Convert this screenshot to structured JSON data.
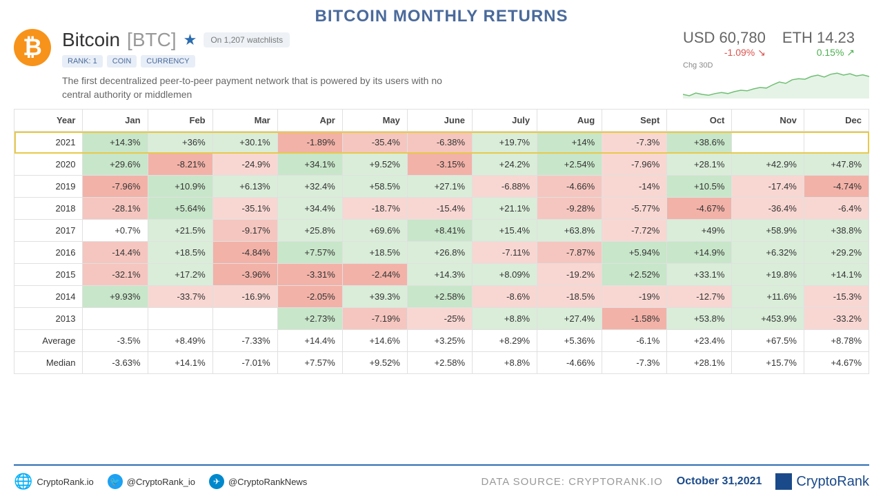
{
  "title": "BITCOIN MONTHLY RETURNS",
  "coin": {
    "name": "Bitcoin",
    "ticker": "[BTC]",
    "watchlists": "On 1,207 watchlists",
    "tags": [
      "RANK: 1",
      "COIN",
      "CURRENCY"
    ],
    "description": "The first decentralized peer-to-peer payment network that is powered by its users with no central authority or middlemen"
  },
  "prices": {
    "usd": {
      "label": "USD 60,780",
      "change": "-1.09% ↘",
      "dir": "down"
    },
    "eth": {
      "label": "ETH 14.23",
      "change": "0.15% ↗",
      "dir": "up"
    },
    "chg_label": "Chg 30D",
    "spark_color": "#6fbf73",
    "spark_fill": "#e5f3e6",
    "spark_points": [
      0.15,
      0.1,
      0.2,
      0.15,
      0.12,
      0.18,
      0.22,
      0.18,
      0.25,
      0.3,
      0.28,
      0.35,
      0.4,
      0.38,
      0.5,
      0.6,
      0.55,
      0.68,
      0.72,
      0.7,
      0.8,
      0.85,
      0.78,
      0.88,
      0.92,
      0.85,
      0.9,
      0.82,
      0.86,
      0.8
    ]
  },
  "columns": [
    "Year",
    "Jan",
    "Feb",
    "Mar",
    "Apr",
    "May",
    "June",
    "July",
    "Aug",
    "Sept",
    "Oct",
    "Nov",
    "Dec"
  ],
  "rows": [
    {
      "year": "2021",
      "highlight": true,
      "cells": [
        {
          "v": "+14.3%",
          "c": "#c8e6c9"
        },
        {
          "v": "+36%",
          "c": "#d9edd9"
        },
        {
          "v": "+30.1%",
          "c": "#d9edd9"
        },
        {
          "v": "-1.89%",
          "c": "#f2b2a8"
        },
        {
          "v": "-35.4%",
          "c": "#f5c6bf"
        },
        {
          "v": "-6.38%",
          "c": "#f5c6bf"
        },
        {
          "v": "+19.7%",
          "c": "#d9edd9"
        },
        {
          "v": "+14%",
          "c": "#c8e6c9"
        },
        {
          "v": "-7.3%",
          "c": "#f8d7d2"
        },
        {
          "v": "+38.6%",
          "c": "#c8e6c9"
        },
        {
          "v": "",
          "c": "#ffffff"
        },
        {
          "v": "",
          "c": "#ffffff"
        }
      ]
    },
    {
      "year": "2020",
      "cells": [
        {
          "v": "+29.6%",
          "c": "#c8e6c9"
        },
        {
          "v": "-8.21%",
          "c": "#f2b2a8"
        },
        {
          "v": "-24.9%",
          "c": "#f8d7d2"
        },
        {
          "v": "+34.1%",
          "c": "#c8e6c9"
        },
        {
          "v": "+9.52%",
          "c": "#d9edd9"
        },
        {
          "v": "-3.15%",
          "c": "#f2b2a8"
        },
        {
          "v": "+24.2%",
          "c": "#d9edd9"
        },
        {
          "v": "+2.54%",
          "c": "#c8e6c9"
        },
        {
          "v": "-7.96%",
          "c": "#f8d7d2"
        },
        {
          "v": "+28.1%",
          "c": "#d9edd9"
        },
        {
          "v": "+42.9%",
          "c": "#d9edd9"
        },
        {
          "v": "+47.8%",
          "c": "#d9edd9"
        }
      ]
    },
    {
      "year": "2019",
      "cells": [
        {
          "v": "-7.96%",
          "c": "#f2b2a8"
        },
        {
          "v": "+10.9%",
          "c": "#c8e6c9"
        },
        {
          "v": "+6.13%",
          "c": "#d9edd9"
        },
        {
          "v": "+32.4%",
          "c": "#d9edd9"
        },
        {
          "v": "+58.5%",
          "c": "#d9edd9"
        },
        {
          "v": "+27.1%",
          "c": "#d9edd9"
        },
        {
          "v": "-6.88%",
          "c": "#f8d7d2"
        },
        {
          "v": "-4.66%",
          "c": "#f5c6bf"
        },
        {
          "v": "-14%",
          "c": "#f8d7d2"
        },
        {
          "v": "+10.5%",
          "c": "#c8e6c9"
        },
        {
          "v": "-17.4%",
          "c": "#f8d7d2"
        },
        {
          "v": "-4.74%",
          "c": "#f2b2a8"
        }
      ]
    },
    {
      "year": "2018",
      "cells": [
        {
          "v": "-28.1%",
          "c": "#f5c6bf"
        },
        {
          "v": "+5.64%",
          "c": "#c8e6c9"
        },
        {
          "v": "-35.1%",
          "c": "#f8d7d2"
        },
        {
          "v": "+34.4%",
          "c": "#d9edd9"
        },
        {
          "v": "-18.7%",
          "c": "#f8d7d2"
        },
        {
          "v": "-15.4%",
          "c": "#f8d7d2"
        },
        {
          "v": "+21.1%",
          "c": "#d9edd9"
        },
        {
          "v": "-9.28%",
          "c": "#f5c6bf"
        },
        {
          "v": "-5.77%",
          "c": "#f8d7d2"
        },
        {
          "v": "-4.67%",
          "c": "#f2b2a8"
        },
        {
          "v": "-36.4%",
          "c": "#f8d7d2"
        },
        {
          "v": "-6.4%",
          "c": "#f8d7d2"
        }
      ]
    },
    {
      "year": "2017",
      "cells": [
        {
          "v": "+0.7%",
          "c": "#ffffff"
        },
        {
          "v": "+21.5%",
          "c": "#d9edd9"
        },
        {
          "v": "-9.17%",
          "c": "#f5c6bf"
        },
        {
          "v": "+25.8%",
          "c": "#d9edd9"
        },
        {
          "v": "+69.6%",
          "c": "#d9edd9"
        },
        {
          "v": "+8.41%",
          "c": "#c8e6c9"
        },
        {
          "v": "+15.4%",
          "c": "#d9edd9"
        },
        {
          "v": "+63.8%",
          "c": "#d9edd9"
        },
        {
          "v": "-7.72%",
          "c": "#f8d7d2"
        },
        {
          "v": "+49%",
          "c": "#d9edd9"
        },
        {
          "v": "+58.9%",
          "c": "#d9edd9"
        },
        {
          "v": "+38.8%",
          "c": "#d9edd9"
        }
      ]
    },
    {
      "year": "2016",
      "cells": [
        {
          "v": "-14.4%",
          "c": "#f5c6bf"
        },
        {
          "v": "+18.5%",
          "c": "#d9edd9"
        },
        {
          "v": "-4.84%",
          "c": "#f2b2a8"
        },
        {
          "v": "+7.57%",
          "c": "#c8e6c9"
        },
        {
          "v": "+18.5%",
          "c": "#d9edd9"
        },
        {
          "v": "+26.8%",
          "c": "#d9edd9"
        },
        {
          "v": "-7.11%",
          "c": "#f8d7d2"
        },
        {
          "v": "-7.87%",
          "c": "#f5c6bf"
        },
        {
          "v": "+5.94%",
          "c": "#c8e6c9"
        },
        {
          "v": "+14.9%",
          "c": "#c8e6c9"
        },
        {
          "v": "+6.32%",
          "c": "#d9edd9"
        },
        {
          "v": "+29.2%",
          "c": "#d9edd9"
        }
      ]
    },
    {
      "year": "2015",
      "cells": [
        {
          "v": "-32.1%",
          "c": "#f5c6bf"
        },
        {
          "v": "+17.2%",
          "c": "#d9edd9"
        },
        {
          "v": "-3.96%",
          "c": "#f2b2a8"
        },
        {
          "v": "-3.31%",
          "c": "#f2b2a8"
        },
        {
          "v": "-2.44%",
          "c": "#f2b2a8"
        },
        {
          "v": "+14.3%",
          "c": "#d9edd9"
        },
        {
          "v": "+8.09%",
          "c": "#d9edd9"
        },
        {
          "v": "-19.2%",
          "c": "#f8d7d2"
        },
        {
          "v": "+2.52%",
          "c": "#c8e6c9"
        },
        {
          "v": "+33.1%",
          "c": "#d9edd9"
        },
        {
          "v": "+19.8%",
          "c": "#d9edd9"
        },
        {
          "v": "+14.1%",
          "c": "#d9edd9"
        }
      ]
    },
    {
      "year": "2014",
      "cells": [
        {
          "v": "+9.93%",
          "c": "#c8e6c9"
        },
        {
          "v": "-33.7%",
          "c": "#f8d7d2"
        },
        {
          "v": "-16.9%",
          "c": "#f8d7d2"
        },
        {
          "v": "-2.05%",
          "c": "#f2b2a8"
        },
        {
          "v": "+39.3%",
          "c": "#d9edd9"
        },
        {
          "v": "+2.58%",
          "c": "#c8e6c9"
        },
        {
          "v": "-8.6%",
          "c": "#f8d7d2"
        },
        {
          "v": "-18.5%",
          "c": "#f8d7d2"
        },
        {
          "v": "-19%",
          "c": "#f8d7d2"
        },
        {
          "v": "-12.7%",
          "c": "#f8d7d2"
        },
        {
          "v": "+11.6%",
          "c": "#d9edd9"
        },
        {
          "v": "-15.3%",
          "c": "#f8d7d2"
        }
      ]
    },
    {
      "year": "2013",
      "cells": [
        {
          "v": "",
          "c": "#ffffff"
        },
        {
          "v": "",
          "c": "#ffffff"
        },
        {
          "v": "",
          "c": "#ffffff"
        },
        {
          "v": "+2.73%",
          "c": "#c8e6c9"
        },
        {
          "v": "-7.19%",
          "c": "#f5c6bf"
        },
        {
          "v": "-25%",
          "c": "#f8d7d2"
        },
        {
          "v": "+8.8%",
          "c": "#d9edd9"
        },
        {
          "v": "+27.4%",
          "c": "#d9edd9"
        },
        {
          "v": "-1.58%",
          "c": "#f2b2a8"
        },
        {
          "v": "+53.8%",
          "c": "#d9edd9"
        },
        {
          "v": "+453.9%",
          "c": "#d9edd9"
        },
        {
          "v": "-33.2%",
          "c": "#f8d7d2"
        }
      ]
    }
  ],
  "summary": [
    {
      "label": "Average",
      "cells": [
        "-3.5%",
        "+8.49%",
        "-7.33%",
        "+14.4%",
        "+14.6%",
        "+3.25%",
        "+8.29%",
        "+5.36%",
        "-6.1%",
        "+23.4%",
        "+67.5%",
        "+8.78%"
      ]
    },
    {
      "label": "Median",
      "cells": [
        "-3.63%",
        "+14.1%",
        "-7.01%",
        "+7.57%",
        "+9.52%",
        "+2.58%",
        "+8.8%",
        "-4.66%",
        "-7.3%",
        "+28.1%",
        "+15.7%",
        "+4.67%"
      ]
    }
  ],
  "footer": {
    "site": "CryptoRank.io",
    "twitter": "@CryptoRank_io",
    "telegram": "@CryptoRankNews",
    "source": "DATA SOURCE: CRYPTORANK.IO",
    "date": "October 31,2021",
    "brand": "CryptoRank"
  }
}
